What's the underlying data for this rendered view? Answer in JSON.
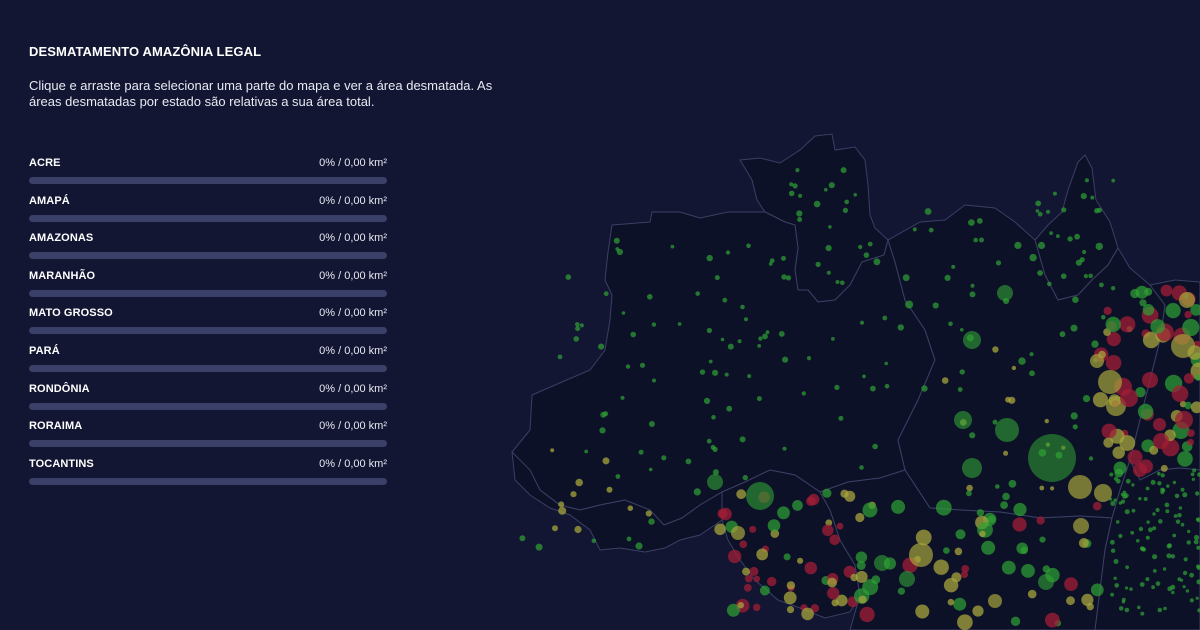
{
  "title": "DESMATAMENTO AMAZÔNIA LEGAL",
  "description": "Clique e arraste para selecionar uma parte do mapa e ver a área desmatada. As áreas desmatadas por estado são relativas a sua área total.",
  "colors": {
    "background": "#121633",
    "map_fill": "#0d1128",
    "map_stroke": "#3a3f63",
    "bar_track": "#3b4068",
    "dot_green": "#2fa233",
    "dot_yellow": "#a7a43c",
    "dot_red": "#a01e35"
  },
  "states": [
    {
      "name": "ACRE",
      "value": "0% / 0,00 km²",
      "percent": 0
    },
    {
      "name": "AMAPÁ",
      "value": "0% / 0,00 km²",
      "percent": 0
    },
    {
      "name": "AMAZONAS",
      "value": "0% / 0,00 km²",
      "percent": 0
    },
    {
      "name": "MARANHÃO",
      "value": "0% / 0,00 km²",
      "percent": 0
    },
    {
      "name": "MATO GROSSO",
      "value": "0% / 0,00 km²",
      "percent": 0
    },
    {
      "name": "PARÁ",
      "value": "0% / 0,00 km²",
      "percent": 0
    },
    {
      "name": "RONDÔNIA",
      "value": "0% / 0,00 km²",
      "percent": 0
    },
    {
      "name": "RORAIMA",
      "value": "0% / 0,00 km²",
      "percent": 0
    },
    {
      "name": "TOCANTINS",
      "value": "0% / 0,00 km²",
      "percent": 0
    }
  ]
}
